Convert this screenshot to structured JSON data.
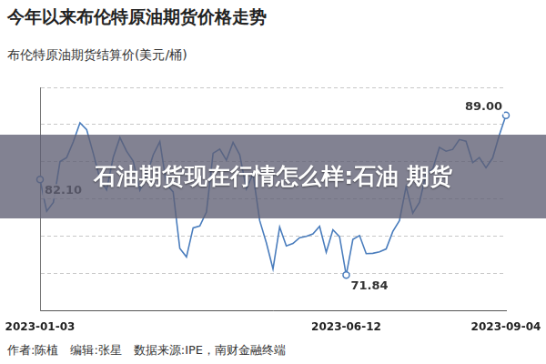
{
  "chart_data": {
    "type": "line",
    "title": "今年以来布伦特原油期货价格走势",
    "subtitle": "布伦特原油期货结算价(美元/桶)",
    "overlay_title": "石油期货现在行情怎么样:石油 期货",
    "footer": "作者:陈植　编辑:张星　数据来源:IPE，南财金融终端",
    "categories": [
      "2023-01-03",
      null,
      null,
      null,
      null,
      null,
      null,
      null,
      null,
      null,
      null,
      null,
      null,
      null,
      null,
      null,
      null,
      null,
      null,
      null,
      null,
      null,
      null,
      null,
      null,
      null,
      null,
      null,
      null,
      null,
      null,
      null,
      null,
      null,
      null,
      null,
      null,
      null,
      null,
      null,
      null,
      null,
      null,
      null,
      null,
      null,
      "2023-06-12",
      null,
      null,
      null,
      null,
      null,
      null,
      null,
      null,
      null,
      null,
      null,
      null,
      null,
      null,
      null,
      null,
      null,
      null,
      null,
      null,
      null,
      null,
      null,
      "2023-09-04"
    ],
    "values": [
      82.1,
      78.69,
      79.65,
      84.03,
      84.46,
      86.16,
      88.19,
      87.47,
      84.9,
      82.17,
      80.99,
      84.5,
      86.61,
      85.14,
      84.07,
      80.95,
      82.45,
      84.75,
      86.18,
      81.59,
      80.77,
      74.7,
      73.79,
      76.91,
      77.12,
      78.6,
      84.93,
      85.38,
      84.18,
      86.09,
      84.76,
      81.1,
      82.73,
      77.69,
      75.32,
      72.5,
      77.01,
      74.98,
      75.23,
      75.86,
      75.99,
      76.26,
      77.07,
      74.28,
      76.71,
      75.96,
      71.84,
      75.67,
      76.09,
      74.14,
      74.18,
      74.34,
      74.65,
      76.52,
      77.69,
      81.36,
      78.5,
      79.64,
      82.74,
      83.24,
      85.56,
      85.14,
      85.34,
      86.4,
      86.21,
      83.91,
      84.46,
      83.36,
      84.42,
      86.86,
      89.0
    ],
    "color": "#4a7dbd",
    "ylim": [
      68,
      92
    ],
    "yticks": [
      68,
      72,
      76,
      80,
      84,
      88,
      92
    ],
    "grid": true,
    "tick_labels": "x",
    "annotations": [
      {
        "x": "2023-01-03",
        "y": 82.1,
        "text": "82.10"
      },
      {
        "x": "2023-06-12",
        "y": 71.84,
        "text": "71.84"
      },
      {
        "x": "2023-09-04",
        "y": 89.0,
        "text": "89.00"
      }
    ]
  }
}
